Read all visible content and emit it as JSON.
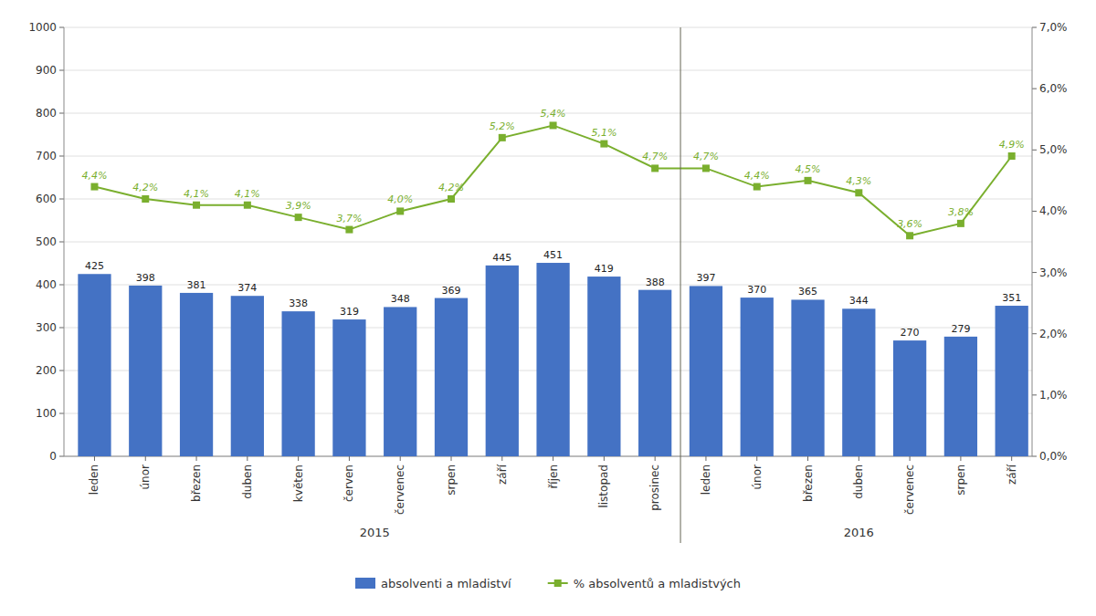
{
  "chart_data": {
    "type": "bar",
    "categories": [
      "leden",
      "únor",
      "březen",
      "duben",
      "květen",
      "červen",
      "červenec",
      "srpen",
      "září",
      "říjen",
      "listopad",
      "prosinec",
      "leden",
      "únor",
      "březen",
      "duben",
      "červenec",
      "srpen",
      "září"
    ],
    "series": [
      {
        "name": "absolventi a mladiství",
        "type": "bar",
        "color": "#4472C4",
        "values": [
          425,
          398,
          381,
          374,
          338,
          319,
          348,
          369,
          445,
          451,
          419,
          388,
          397,
          370,
          365,
          344,
          270,
          279,
          351
        ]
      },
      {
        "name": "% absolventů a mladistvých",
        "type": "line",
        "axis": "y2",
        "color": "#7AAF2E",
        "marker": "square",
        "line_style": "solid",
        "values": [
          4.4,
          4.2,
          4.1,
          4.1,
          3.9,
          3.7,
          4.0,
          4.2,
          5.2,
          5.4,
          5.1,
          4.7,
          4.7,
          4.4,
          4.5,
          4.3,
          3.6,
          3.8,
          4.9
        ],
        "value_labels": [
          "4,4%",
          "4,2%",
          "4,1%",
          "4,1%",
          "3,9%",
          "3,7%",
          "4,0%",
          "4,2%",
          "5,2%",
          "5,4%",
          "5,1%",
          "4,7%",
          "4,7%",
          "4,4%",
          "4,5%",
          "4,3%",
          "3,6%",
          "3,8%",
          "4,9%"
        ]
      }
    ],
    "ylim": [
      0,
      1000
    ],
    "yticks": [
      0,
      100,
      200,
      300,
      400,
      500,
      600,
      700,
      800,
      900,
      1000
    ],
    "y2lim": [
      0.0,
      7.0
    ],
    "y2ticks": [
      {
        "value": 0.0,
        "label": "0,0%"
      },
      {
        "value": 1.0,
        "label": "1,0%"
      },
      {
        "value": 2.0,
        "label": "2,0%"
      },
      {
        "value": 3.0,
        "label": "3,0%"
      },
      {
        "value": 4.0,
        "label": "4,0%"
      },
      {
        "value": 5.0,
        "label": "5,0%"
      },
      {
        "value": 6.0,
        "label": "6,0%"
      },
      {
        "value": 7.0,
        "label": "7,0%"
      }
    ],
    "annotations": [
      {
        "text": "2015",
        "categories": [
          0,
          11
        ]
      },
      {
        "text": "2016",
        "categories": [
          12,
          18
        ]
      }
    ],
    "grid": true,
    "legend": "bottom",
    "data_labels": true
  }
}
